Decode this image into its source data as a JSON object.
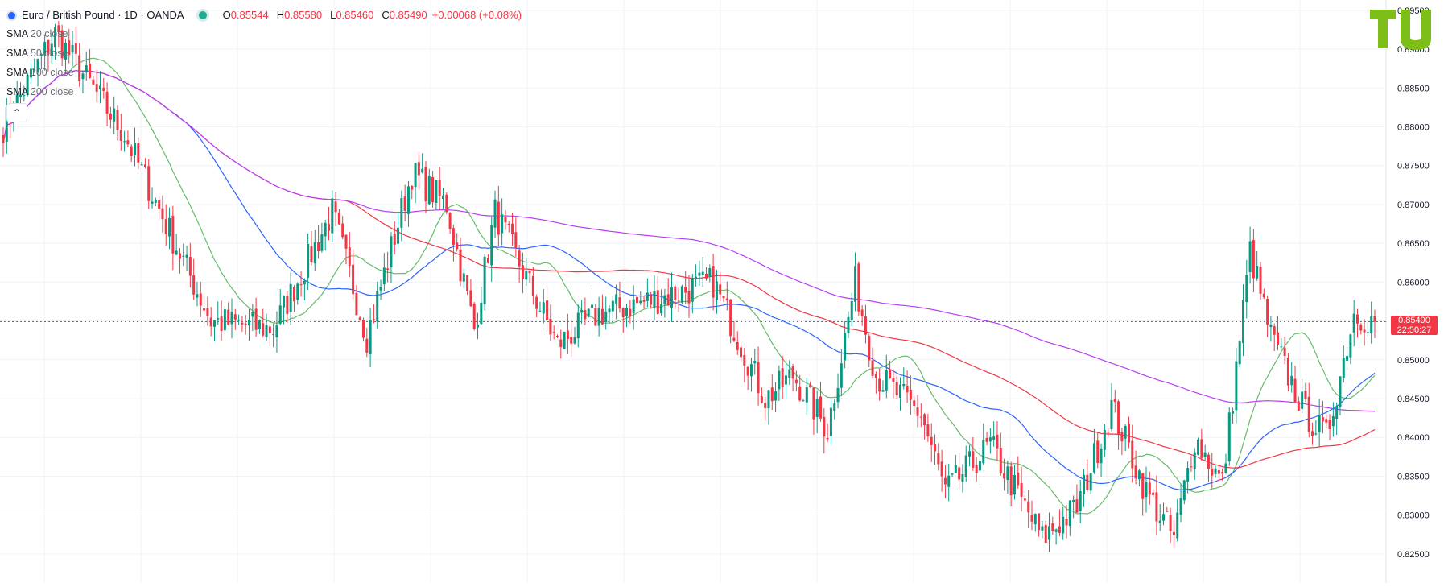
{
  "header": {
    "symbol_title": "Euro / British Pound · 1D · OANDA",
    "ohlc": [
      {
        "key": "O",
        "value": "0.85544"
      },
      {
        "key": "H",
        "value": "0.85580"
      },
      {
        "key": "L",
        "value": "0.85460"
      },
      {
        "key": "C",
        "value": "0.85490"
      }
    ],
    "change": "+0.00068 (+0.08%)"
  },
  "indicators": [
    {
      "name": "SMA",
      "value": "20 close",
      "color": "#66bb6a"
    },
    {
      "name": "SMA",
      "value": "50 close",
      "color": "#2962ff"
    },
    {
      "name": "SMA",
      "value": "100 close",
      "color": "#f23645"
    },
    {
      "name": "SMA",
      "value": "200 close",
      "color": "#b83df5"
    }
  ],
  "last_price": {
    "value": "0.85490",
    "countdown": "22:50:27"
  },
  "colors": {
    "up": "#089981",
    "down": "#f23645",
    "grid": "#f0f3fa",
    "axis_text": "#131722",
    "logo": "#7dbf18"
  },
  "chart_data": {
    "type": "candlestick",
    "y_axis": {
      "side": "right",
      "ylim": [
        0.8225,
        0.8955
      ],
      "ticks": [
        "0.89500",
        "0.89000",
        "0.88500",
        "0.88000",
        "0.87500",
        "0.87000",
        "0.86500",
        "0.86000",
        "0.85500",
        "0.85000",
        "0.84500",
        "0.84000",
        "0.83500",
        "0.83000",
        "0.82500"
      ]
    },
    "grid": true,
    "key_points": [
      {
        "bar": 0,
        "close": 0.88
      },
      {
        "bar": 15,
        "close": 0.892
      },
      {
        "bar": 35,
        "close": 0.879
      },
      {
        "bar": 60,
        "close": 0.855
      },
      {
        "bar": 78,
        "close": 0.854
      },
      {
        "bar": 95,
        "close": 0.869
      },
      {
        "bar": 105,
        "close": 0.853
      },
      {
        "bar": 118,
        "close": 0.874
      },
      {
        "bar": 128,
        "close": 0.87
      },
      {
        "bar": 136,
        "close": 0.854
      },
      {
        "bar": 142,
        "close": 0.869
      },
      {
        "bar": 160,
        "close": 0.852
      },
      {
        "bar": 172,
        "close": 0.856
      },
      {
        "bar": 190,
        "close": 0.858
      },
      {
        "bar": 205,
        "close": 0.86
      },
      {
        "bar": 220,
        "close": 0.845
      },
      {
        "bar": 228,
        "close": 0.848
      },
      {
        "bar": 238,
        "close": 0.841
      },
      {
        "bar": 246,
        "close": 0.86
      },
      {
        "bar": 252,
        "close": 0.848
      },
      {
        "bar": 265,
        "close": 0.843
      },
      {
        "bar": 272,
        "close": 0.833
      },
      {
        "bar": 285,
        "close": 0.839
      },
      {
        "bar": 300,
        "close": 0.827
      },
      {
        "bar": 310,
        "close": 0.831
      },
      {
        "bar": 320,
        "close": 0.844
      },
      {
        "bar": 330,
        "close": 0.833
      },
      {
        "bar": 338,
        "close": 0.827
      },
      {
        "bar": 344,
        "close": 0.84
      },
      {
        "bar": 352,
        "close": 0.834
      },
      {
        "bar": 360,
        "close": 0.864
      },
      {
        "bar": 366,
        "close": 0.853
      },
      {
        "bar": 376,
        "close": 0.843
      },
      {
        "bar": 382,
        "close": 0.84
      },
      {
        "bar": 390,
        "close": 0.856
      },
      {
        "bar": 396,
        "close": 0.8549
      }
    ]
  }
}
